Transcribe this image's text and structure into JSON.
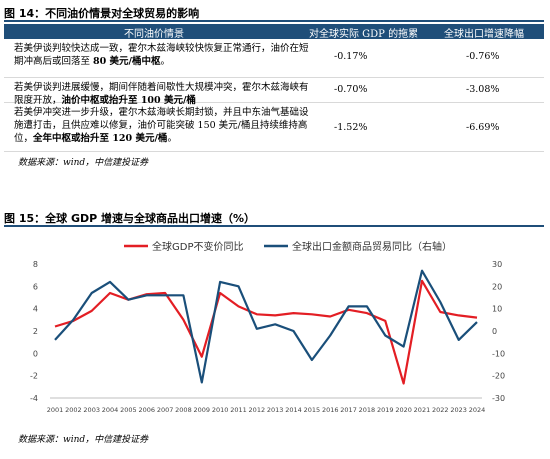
{
  "fig14": {
    "title": "图 14：不同油价情景对全球贸易的影响",
    "headers": [
      "不同油价情景",
      "对全球实际 GDP 的拖累",
      "全球出口增速降幅"
    ],
    "rows": [
      {
        "desc": "若美伊谈判较快达成一致，霍尔木兹海峡较快恢复正常通行，油价在短期冲高后或回落至 ",
        "bold": "80 美元/桶中枢",
        "tail": "。",
        "gdp": "-0.17%",
        "exp": "-0.76%"
      },
      {
        "desc": "若美伊谈判进展缓慢，期间伴随着间歇性大规模冲突，霍尔木兹海峡有限度开放，",
        "bold": "油价中枢或抬升至 100 美元/桶",
        "tail": "",
        "gdp": "-0.70%",
        "exp": "-3.08%"
      },
      {
        "desc": "若美伊冲突进一步升级，霍尔木兹海峡长期封锁，并且中东油气基础设施遭打击，且供应难以修复，油价可能突破 150 美元/桶且持续维持高位，",
        "bold": "全年中枢或抬升至 120 美元/桶",
        "tail": "。",
        "gdp": "-1.52%",
        "exp": "-6.69%"
      }
    ],
    "source": "数据来源：wind，中信建投证券"
  },
  "fig15": {
    "title": "图 15：全球 GDP 增速与全球商品出口增速（%）",
    "source": "数据来源：wind，中信建投证券"
  },
  "colors": {
    "accent": "#1f4e79",
    "gdp_line": "#e31e24",
    "export_line": "#1a4f7a"
  },
  "chart_data": {
    "type": "line",
    "x": [
      "2001",
      "2002",
      "2003",
      "2004",
      "2005",
      "2006",
      "2007",
      "2008",
      "2009",
      "2010",
      "2011",
      "2012",
      "2013",
      "2014",
      "2015",
      "2016",
      "2017",
      "2018",
      "2019",
      "2020",
      "2021",
      "2022",
      "2023",
      "2024"
    ],
    "series": [
      {
        "name": "全球GDP不变价同比",
        "axis": "left",
        "values": [
          2.4,
          2.9,
          3.8,
          5.4,
          4.8,
          5.3,
          5.4,
          3.0,
          -0.3,
          5.4,
          4.2,
          3.5,
          3.4,
          3.6,
          3.5,
          3.3,
          3.9,
          3.6,
          2.9,
          -2.7,
          6.5,
          3.7,
          3.4,
          3.2
        ]
      },
      {
        "name": "全球出口金额商品贸易同比（右轴）",
        "axis": "right",
        "values": [
          -4,
          5,
          17,
          22,
          14,
          16,
          16,
          16,
          -23,
          22,
          20,
          1,
          3,
          0,
          -13,
          -2,
          11,
          11,
          -2,
          -7,
          27,
          13,
          -4,
          4
        ]
      }
    ],
    "y_left": {
      "lim": [
        -4,
        8
      ],
      "ticks": [
        -4,
        -2,
        0,
        2,
        4,
        6,
        8
      ]
    },
    "y_right": {
      "lim": [
        -30,
        30
      ],
      "ticks": [
        -30,
        -20,
        -10,
        0,
        10,
        20,
        30
      ]
    },
    "legend_position": "top",
    "grid": false
  }
}
